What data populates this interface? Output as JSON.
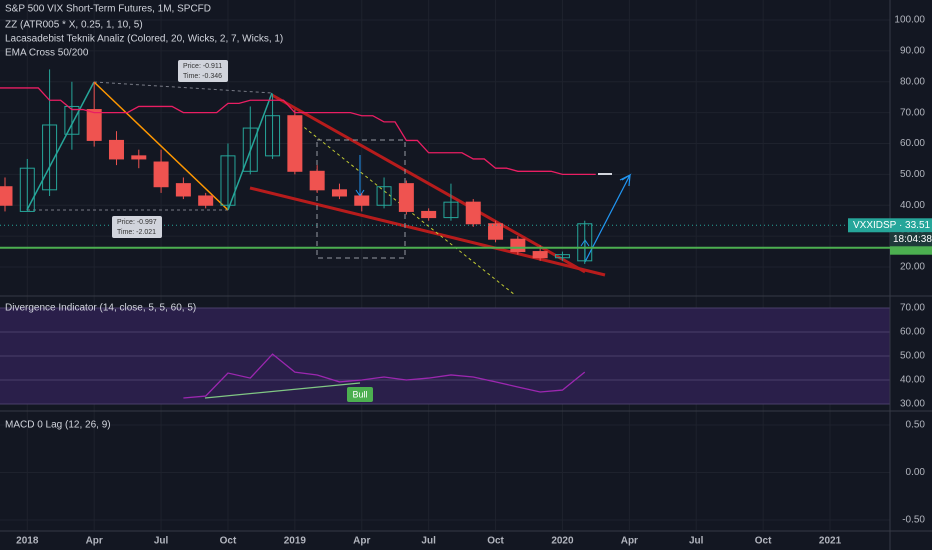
{
  "chart_data": [
    {
      "type": "candlestick",
      "title": "S&P 500 VIX Short-Term Futures, 1M, SPCFD",
      "indicators": [
        "ZZ (ATR005 * X, 0.25, 1, 10, 5)",
        "Lacasadebist Teknik Analiz (Colored, 20, Wicks, 2, 7, Wicks, 1)",
        "EMA Cross 50/200"
      ],
      "categories": [
        null,
        "2018",
        null,
        null,
        "Apr",
        null,
        null,
        "Jul",
        null,
        null,
        "Oct",
        null,
        null,
        "2019",
        null,
        null,
        "Apr",
        null,
        null,
        "Jul",
        null,
        null,
        "Oct",
        null,
        null,
        "2020",
        null
      ],
      "xlim": [
        -0.224,
        39.69
      ],
      "xticks": [
        {
          "value": 28,
          "label": "Apr"
        },
        {
          "value": 31,
          "label": "Jul"
        },
        {
          "value": 34,
          "label": "Oct"
        },
        {
          "value": 37,
          "label": "2021"
        }
      ],
      "open": [
        46,
        38,
        45,
        63,
        71,
        61,
        56,
        54,
        47,
        43,
        40,
        51,
        56,
        69,
        51,
        45,
        43,
        40,
        47,
        38,
        36,
        41,
        34,
        29,
        25,
        23,
        22
      ],
      "high": [
        49,
        55,
        84,
        80,
        80,
        64,
        58,
        58,
        49,
        44,
        60,
        72,
        76,
        71,
        53,
        47,
        44,
        49,
        48,
        39,
        47,
        42,
        35,
        30,
        27,
        25,
        35
      ],
      "low": [
        38,
        38,
        43,
        58,
        59,
        53,
        52,
        44,
        42,
        39,
        39,
        50,
        55,
        50,
        44,
        42,
        38,
        39,
        37,
        35,
        35,
        33,
        28,
        24,
        22,
        22,
        21
      ],
      "close": [
        40,
        52,
        66,
        72,
        61,
        55,
        55,
        46,
        43,
        40,
        56,
        65,
        69,
        51,
        45,
        43,
        40,
        46,
        38,
        36,
        41,
        34,
        29,
        25,
        23,
        24,
        34
      ],
      "up_color": "#26a69a",
      "down_color": "#ef5350",
      "series": [
        {
          "name": "EMA Cross 50/200",
          "color": "#e91e63",
          "values": [
            78,
            78,
            74,
            71,
            70,
            70,
            72,
            72,
            70,
            70,
            73,
            74,
            74,
            70,
            70,
            70,
            69,
            67,
            61,
            57,
            57,
            55,
            52,
            51,
            51,
            50,
            50
          ]
        }
      ],
      "horizontal_line": {
        "value": 26.25,
        "color": "#4caf50"
      },
      "last_price": {
        "value": 33.51,
        "label": "VXXIDSP · 33.51",
        "countdown": "18:04:38"
      },
      "annotations": [
        [
          "Price: -0.911",
          "Time: -0.346"
        ],
        [
          "Price: -0.997",
          "Time: -2.021"
        ]
      ],
      "ylim": [
        10.93,
        106.48
      ],
      "yticks": [
        {
          "value": 20,
          "label": "20.00"
        },
        {
          "value": 30,
          "label": "30.00"
        },
        {
          "value": 40,
          "label": "40.00"
        },
        {
          "value": 50,
          "label": "50.00"
        },
        {
          "value": 60,
          "label": "60.00"
        },
        {
          "value": 70,
          "label": "70.00"
        },
        {
          "value": 80,
          "label": "80.00"
        },
        {
          "value": 90,
          "label": "90.00"
        },
        {
          "value": 100,
          "label": "100.00"
        }
      ],
      "grid": true
    },
    {
      "type": "line",
      "title": "Divergence Indicator (14, close, 5, 5, 60, 5)",
      "series": [
        {
          "name": "Divergence",
          "color": "#9c27b0",
          "values": [
            null,
            null,
            null,
            null,
            null,
            null,
            null,
            null,
            32.5,
            33.3,
            42.9,
            40.8,
            50.8,
            43.3,
            42.1,
            39.2,
            40,
            41.25,
            40,
            40.8,
            42.1,
            41.25,
            39.2,
            37.1,
            35,
            35.8,
            43.3
          ]
        }
      ],
      "signal": "Bull",
      "band_color": "#2a1f4a",
      "ylim": [
        27.5,
        74.17
      ],
      "yticks": [
        {
          "value": 30,
          "label": "30.00"
        },
        {
          "value": 40,
          "label": "40.00"
        },
        {
          "value": 50,
          "label": "50.00"
        },
        {
          "value": 60,
          "label": "60.00"
        },
        {
          "value": 70,
          "label": "70.00"
        }
      ]
    },
    {
      "type": "line",
      "title": "MACD 0 Lag (12, 26, 9)",
      "ylim": [
        -0.605,
        0.626
      ],
      "yticks": [
        {
          "value": -0.5,
          "label": "-0.50"
        },
        {
          "value": 0,
          "label": "0.00"
        },
        {
          "value": 0.5,
          "label": "0.50"
        }
      ]
    }
  ]
}
